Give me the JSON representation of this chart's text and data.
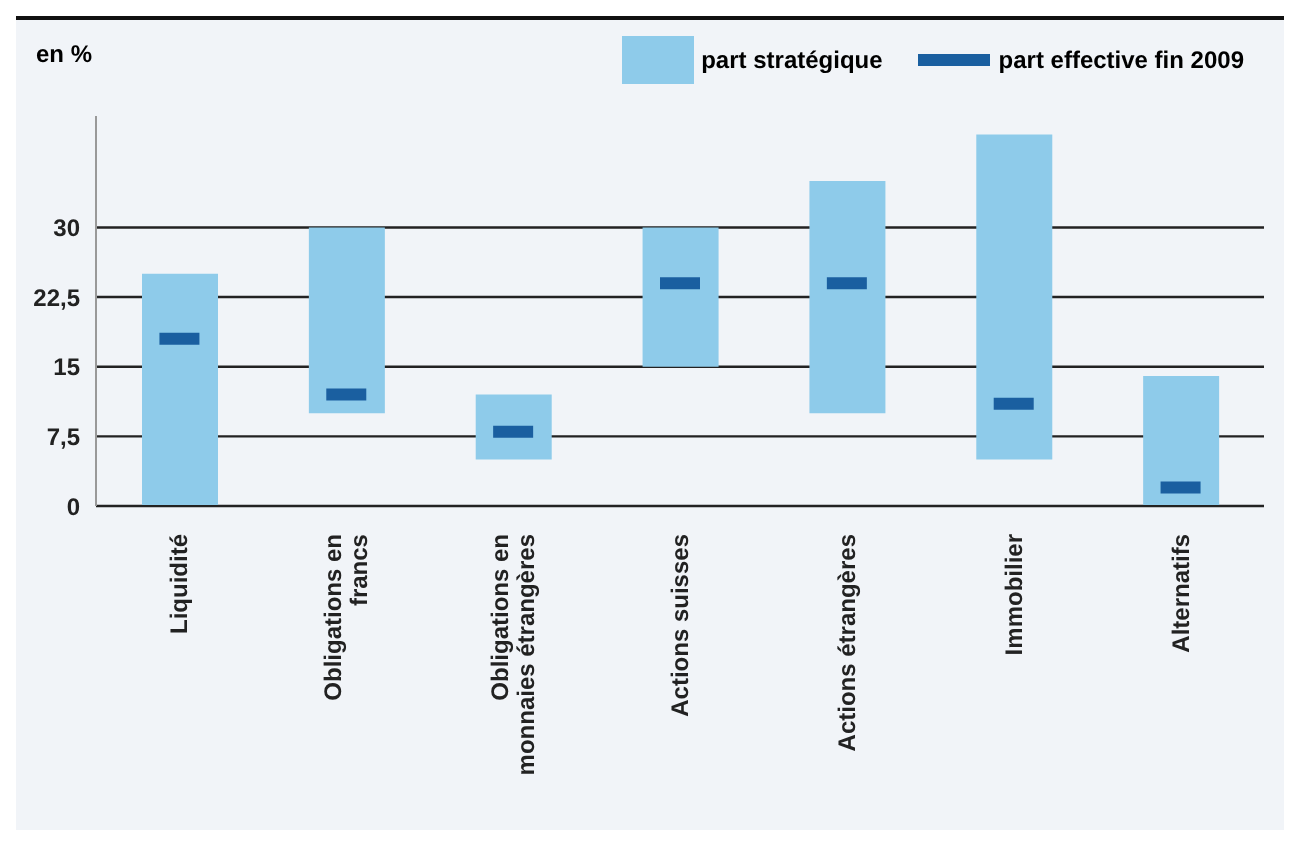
{
  "chart_data": {
    "type": "bar",
    "ylabel": "en %",
    "categories": [
      "Liquidité",
      "Obligations en francs",
      "Obligations en monnaies étrangères",
      "Actions suisses",
      "Actions étrangères",
      "Immobilier",
      "Alternatifs"
    ],
    "series": [
      {
        "name": "part stratégique",
        "type": "bar",
        "color": "#8ecbea",
        "base": [
          0,
          10,
          5,
          15,
          10,
          5,
          0
        ],
        "values": [
          25,
          20,
          7,
          15,
          25,
          35,
          14
        ]
      },
      {
        "name": "part effective fin 2009",
        "type": "scatter",
        "color": "#1a5fa0",
        "values": [
          18,
          12,
          8,
          24,
          24,
          11,
          2
        ]
      }
    ],
    "ylim": [
      0,
      42
    ],
    "yticks": [
      0,
      {
        "value": 7.5,
        "label": "7,5"
      },
      15,
      {
        "value": 22.5,
        "label": "22,5"
      },
      30
    ],
    "grid": "y",
    "legend": "top right"
  }
}
